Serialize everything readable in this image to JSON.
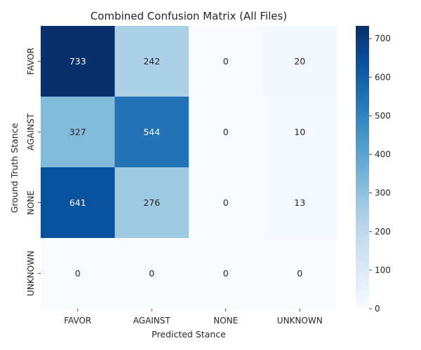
{
  "chart_data": {
    "type": "heatmap",
    "title": "Combined Confusion Matrix (All Files)",
    "xlabel": "Predicted Stance",
    "ylabel": "Ground Truth Stance",
    "x_categories": [
      "FAVOR",
      "AGAINST",
      "NONE",
      "UNKNOWN"
    ],
    "y_categories": [
      "FAVOR",
      "AGAINST",
      "NONE",
      "UNKNOWN"
    ],
    "values": [
      [
        733,
        242,
        0,
        20
      ],
      [
        327,
        544,
        0,
        10
      ],
      [
        641,
        276,
        0,
        13
      ],
      [
        0,
        0,
        0,
        0
      ]
    ],
    "colorbar": {
      "min": 0,
      "max": 733,
      "ticks": [
        0,
        100,
        200,
        300,
        400,
        500,
        600,
        700
      ],
      "colormap": "Blues"
    }
  }
}
